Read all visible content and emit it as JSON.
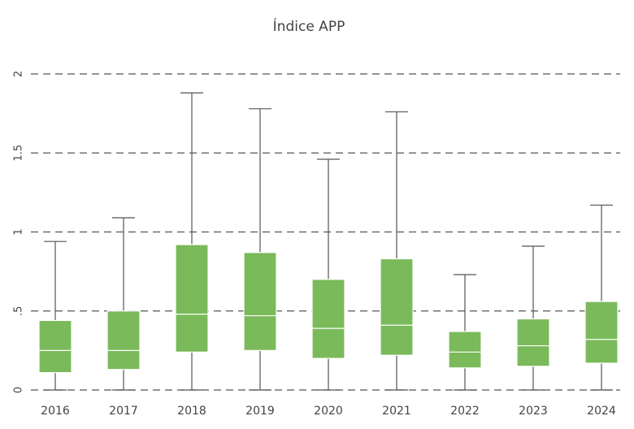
{
  "chart_data": {
    "type": "boxplot",
    "title": "Índice APP",
    "xlabel": "",
    "ylabel": "",
    "ylim": [
      0,
      2
    ],
    "yticks": [
      0,
      0.5,
      1,
      1.5,
      2
    ],
    "ytick_labels": [
      "0",
      ".5",
      "1",
      "1.5",
      "2"
    ],
    "grid": true,
    "box_color": "#7aba5a",
    "categories": [
      "2016",
      "2017",
      "2018",
      "2019",
      "2020",
      "2021",
      "2022",
      "2023",
      "2024"
    ],
    "boxes": [
      {
        "min": 0,
        "q1": 0.11,
        "median": 0.25,
        "q3": 0.44,
        "max": 0.94
      },
      {
        "min": 0,
        "q1": 0.13,
        "median": 0.25,
        "q3": 0.5,
        "max": 1.09
      },
      {
        "min": 0,
        "q1": 0.24,
        "median": 0.48,
        "q3": 0.92,
        "max": 1.88
      },
      {
        "min": 0,
        "q1": 0.25,
        "median": 0.47,
        "q3": 0.87,
        "max": 1.78
      },
      {
        "min": 0,
        "q1": 0.2,
        "median": 0.39,
        "q3": 0.7,
        "max": 1.46
      },
      {
        "min": 0,
        "q1": 0.22,
        "median": 0.41,
        "q3": 0.83,
        "max": 1.76
      },
      {
        "min": 0,
        "q1": 0.14,
        "median": 0.24,
        "q3": 0.37,
        "max": 0.73
      },
      {
        "min": 0,
        "q1": 0.15,
        "median": 0.28,
        "q3": 0.45,
        "max": 0.91
      },
      {
        "min": 0,
        "q1": 0.17,
        "median": 0.32,
        "q3": 0.56,
        "max": 1.17
      }
    ]
  }
}
